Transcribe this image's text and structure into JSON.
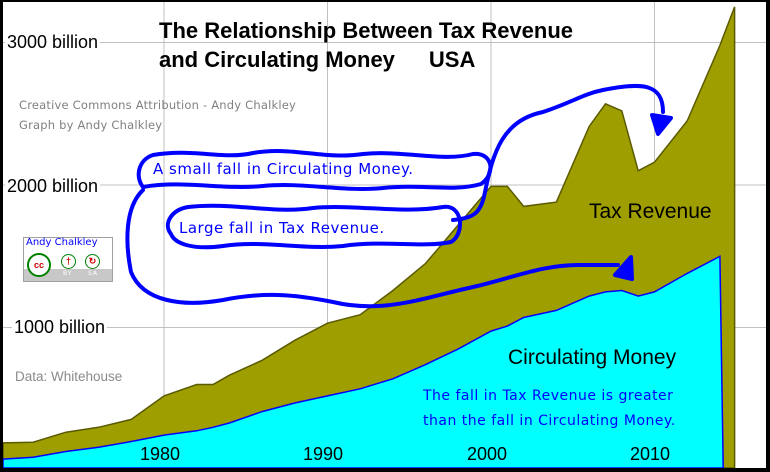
{
  "title": {
    "line1": "The Relationship Between Tax Revenue",
    "line2": "and Circulating Money",
    "country": "USA"
  },
  "credits": {
    "line1": "Creative Commons Attribution - Andy Chalkley",
    "line2": "Graph by Andy Chalkley"
  },
  "data_source": "Data: Whitehouse",
  "license_badge": {
    "name": "Andy Chalkley",
    "cc": "cc",
    "by_label": "BY",
    "sa_label": "SA",
    "by_icon": "person-icon",
    "sa_icon": "share-alike-icon"
  },
  "annotations": {
    "small_fall": "A small fall in Circulating Money.",
    "large_fall": "Large fall in Tax Revenue.",
    "conclusion_line1": "The fall in Tax Revenue is greater",
    "conclusion_line2": "than the fall in Circulating Money."
  },
  "series_labels": {
    "tax": "Tax Revenue",
    "money": "Circulating Money"
  },
  "colors": {
    "tax_fill": "#9e9e00",
    "tax_stroke": "#5a5a00",
    "money_fill": "#00ffff",
    "money_stroke": "#0000ff",
    "annotation": "#0000ff",
    "grid": "#c0c0c0"
  },
  "chart_data": {
    "type": "area",
    "title": "The Relationship Between Tax Revenue and Circulating Money USA",
    "xlabel": "",
    "ylabel": "",
    "x_ticks": [
      "1980",
      "1990",
      "2000",
      "2010"
    ],
    "y_ticks": [
      "1000 billion",
      "2000 billion",
      "3000 billion"
    ],
    "ylim": [
      0,
      3150
    ],
    "xlim": [
      1970,
      2016
    ],
    "grid": true,
    "legend": "inline labels",
    "x": [
      1970,
      1972,
      1974,
      1976,
      1978,
      1980,
      1982,
      1983,
      1984,
      1986,
      1988,
      1990,
      1992,
      1994,
      1996,
      1998,
      2000,
      2001,
      2002,
      2004,
      2006,
      2007,
      2008,
      2009,
      2010,
      2012,
      2014,
      2015
    ],
    "series": [
      {
        "name": "Tax Revenue",
        "values": [
          190,
          195,
          265,
          300,
          355,
          520,
          600,
          600,
          665,
          770,
          910,
          1030,
          1090,
          1260,
          1450,
          1720,
          1990,
          1990,
          1850,
          1880,
          2410,
          2570,
          2520,
          2100,
          2160,
          2450,
          2980,
          3250
        ]
      },
      {
        "name": "Circulating Money",
        "values": [
          75,
          90,
          130,
          160,
          200,
          245,
          275,
          300,
          330,
          410,
          470,
          520,
          570,
          640,
          740,
          850,
          975,
          1010,
          1070,
          1120,
          1220,
          1250,
          1260,
          1220,
          1250,
          1380,
          1500,
          1530
        ]
      }
    ]
  }
}
